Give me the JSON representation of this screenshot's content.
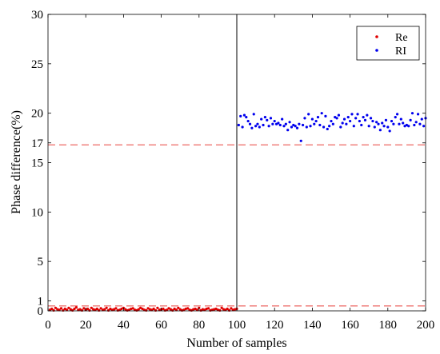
{
  "chart_data": {
    "type": "scatter",
    "xlabel": "Number of  samples",
    "ylabel": "Phase difference(%)",
    "xlim": [
      0,
      200
    ],
    "ylim": [
      0,
      30
    ],
    "x_ticks": [
      0,
      20,
      40,
      60,
      80,
      100,
      120,
      140,
      160,
      180,
      200
    ],
    "y_ticks": [
      0,
      1,
      5,
      10,
      15,
      17,
      20,
      25,
      30
    ],
    "grid": false,
    "legend_position": "top-right",
    "vertical_divider_x": 100,
    "threshold_lines": [
      {
        "y": 0.5,
        "color": "#e8413c",
        "style": "dashed"
      },
      {
        "y": 16.8,
        "color": "#e8413c",
        "style": "dashed"
      }
    ],
    "series": [
      {
        "name": "Re",
        "color": "#e00000",
        "x": [
          1,
          2,
          3,
          4,
          5,
          6,
          7,
          8,
          9,
          10,
          11,
          12,
          13,
          14,
          15,
          16,
          17,
          18,
          19,
          20,
          21,
          22,
          23,
          24,
          25,
          26,
          27,
          28,
          29,
          30,
          31,
          32,
          33,
          34,
          35,
          36,
          37,
          38,
          39,
          40,
          41,
          42,
          43,
          44,
          45,
          46,
          47,
          48,
          49,
          50,
          51,
          52,
          53,
          54,
          55,
          56,
          57,
          58,
          59,
          60,
          61,
          62,
          63,
          64,
          65,
          66,
          67,
          68,
          69,
          70,
          71,
          72,
          73,
          74,
          75,
          76,
          77,
          78,
          79,
          80,
          81,
          82,
          83,
          84,
          85,
          86,
          87,
          88,
          89,
          90,
          91,
          92,
          93,
          94,
          95,
          96,
          97,
          98,
          99,
          100
        ],
        "y": [
          0.1,
          0.2,
          0.05,
          0.3,
          0.15,
          0.1,
          0.25,
          0.05,
          0.2,
          0.1,
          0.3,
          0.15,
          0.05,
          0.2,
          0.35,
          0.1,
          0.15,
          0.05,
          0.25,
          0.1,
          0.2,
          0.05,
          0.3,
          0.15,
          0.1,
          0.2,
          0.05,
          0.25,
          0.1,
          0.15,
          0.3,
          0.05,
          0.2,
          0.1,
          0.15,
          0.25,
          0.05,
          0.1,
          0.2,
          0.3,
          0.15,
          0.05,
          0.1,
          0.2,
          0.25,
          0.1,
          0.05,
          0.15,
          0.3,
          0.2,
          0.1,
          0.05,
          0.25,
          0.15,
          0.1,
          0.2,
          0.05,
          0.3,
          0.1,
          0.15,
          0.2,
          0.05,
          0.1,
          0.25,
          0.15,
          0.05,
          0.2,
          0.1,
          0.3,
          0.15,
          0.05,
          0.1,
          0.2,
          0.25,
          0.1,
          0.05,
          0.15,
          0.2,
          0.1,
          0.3,
          0.05,
          0.15,
          0.1,
          0.2,
          0.25,
          0.05,
          0.1,
          0.15,
          0.2,
          0.1,
          0.05,
          0.3,
          0.15,
          0.1,
          0.2,
          0.05,
          0.25,
          0.1,
          0.15,
          0.2
        ]
      },
      {
        "name": "RI",
        "color": "#0000ee",
        "x": [
          101,
          102,
          103,
          104,
          105,
          106,
          107,
          108,
          109,
          110,
          111,
          112,
          113,
          114,
          115,
          116,
          117,
          118,
          119,
          120,
          121,
          122,
          123,
          124,
          125,
          126,
          127,
          128,
          129,
          130,
          131,
          132,
          133,
          134,
          135,
          136,
          137,
          138,
          139,
          140,
          141,
          142,
          143,
          144,
          145,
          146,
          147,
          148,
          149,
          150,
          151,
          152,
          153,
          154,
          155,
          156,
          157,
          158,
          159,
          160,
          161,
          162,
          163,
          164,
          165,
          166,
          167,
          168,
          169,
          170,
          171,
          172,
          173,
          174,
          175,
          176,
          177,
          178,
          179,
          180,
          181,
          182,
          183,
          184,
          185,
          186,
          187,
          188,
          189,
          190,
          191,
          192,
          193,
          194,
          195,
          196,
          197,
          198,
          199,
          200
        ],
        "y": [
          18.8,
          19.7,
          18.6,
          19.8,
          19.6,
          19.2,
          18.9,
          18.5,
          19.9,
          18.7,
          18.9,
          18.6,
          19.4,
          18.8,
          19.6,
          19.3,
          18.7,
          19.5,
          18.9,
          19.2,
          18.9,
          19.0,
          18.8,
          19.4,
          18.7,
          18.9,
          18.3,
          19.1,
          18.6,
          18.8,
          18.7,
          18.5,
          18.9,
          17.2,
          18.8,
          19.5,
          18.6,
          19.9,
          18.7,
          19.4,
          18.9,
          19.2,
          19.6,
          18.8,
          20.0,
          18.6,
          19.7,
          18.4,
          18.7,
          19.2,
          18.9,
          19.6,
          19.5,
          19.8,
          18.6,
          19.0,
          19.4,
          18.9,
          19.6,
          19.2,
          19.9,
          18.7,
          19.5,
          19.9,
          19.2,
          18.8,
          19.6,
          19.3,
          19.8,
          18.7,
          19.5,
          19.2,
          18.6,
          19.1,
          18.9,
          18.3,
          19.0,
          18.7,
          19.3,
          18.6,
          18.2,
          19.2,
          18.9,
          19.6,
          19.9,
          18.9,
          19.4,
          19.0,
          18.7,
          18.8,
          18.7,
          19.3,
          20.0,
          18.8,
          19.1,
          19.9,
          18.9,
          19.4,
          18.7,
          19.5
        ]
      }
    ]
  }
}
